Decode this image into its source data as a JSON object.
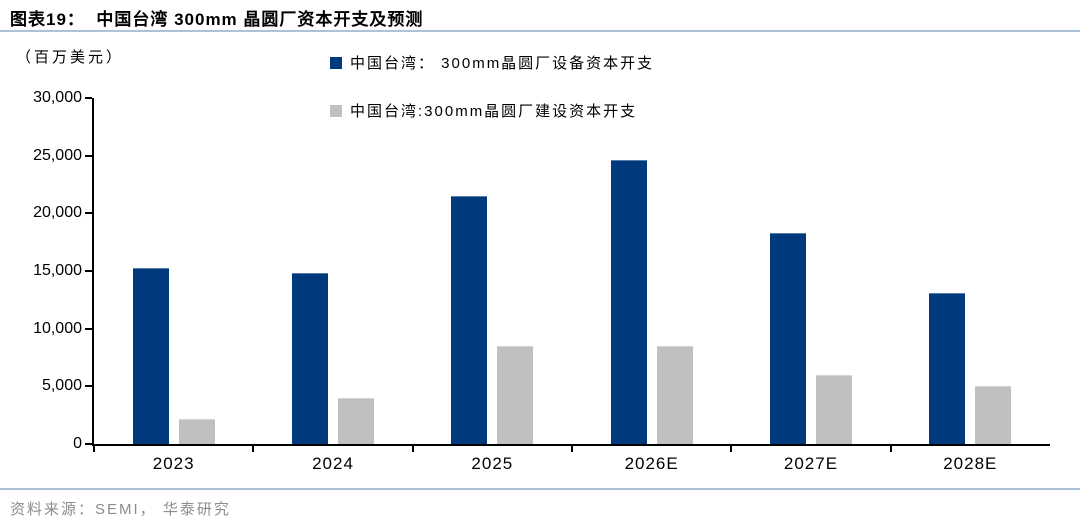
{
  "figure": {
    "title": "图表19：  中国台湾 300mm 晶圆厂资本开支及预测",
    "unit_label": "（百万美元）",
    "source": "资料来源：SEMI， 华泰研究"
  },
  "colors": {
    "equipment_series": "#003a7c",
    "construction_series": "#bfbfbf",
    "axis": "#000000",
    "divider_rule": "#aec2d6",
    "source_text": "#8c8c8c"
  },
  "chart_data": {
    "type": "bar",
    "categories": [
      "2023",
      "2024",
      "2025",
      "2026E",
      "2027E",
      "2028E"
    ],
    "series": [
      {
        "name": "中国台湾： 300mm晶圆厂设备资本开支",
        "color": "#003a7c",
        "values": [
          15300,
          14800,
          21500,
          24650,
          18300,
          13100
        ]
      },
      {
        "name": "中国台湾:300mm晶圆厂建设资本开支",
        "color": "#bfbfbf",
        "values": [
          2200,
          4000,
          8500,
          8500,
          6000,
          5000
        ]
      }
    ],
    "title": "中国台湾 300mm 晶圆厂资本开支及预测",
    "xlabel": "",
    "ylabel": "（百万美元）",
    "ylim": [
      0,
      30000
    ],
    "ytick_interval": 5000,
    "ytick_labels": [
      "30,000",
      "25,000",
      "20,000",
      "15,000",
      "10,000",
      "5,000",
      "0"
    ],
    "grid": false,
    "legend_position": "top-center"
  }
}
